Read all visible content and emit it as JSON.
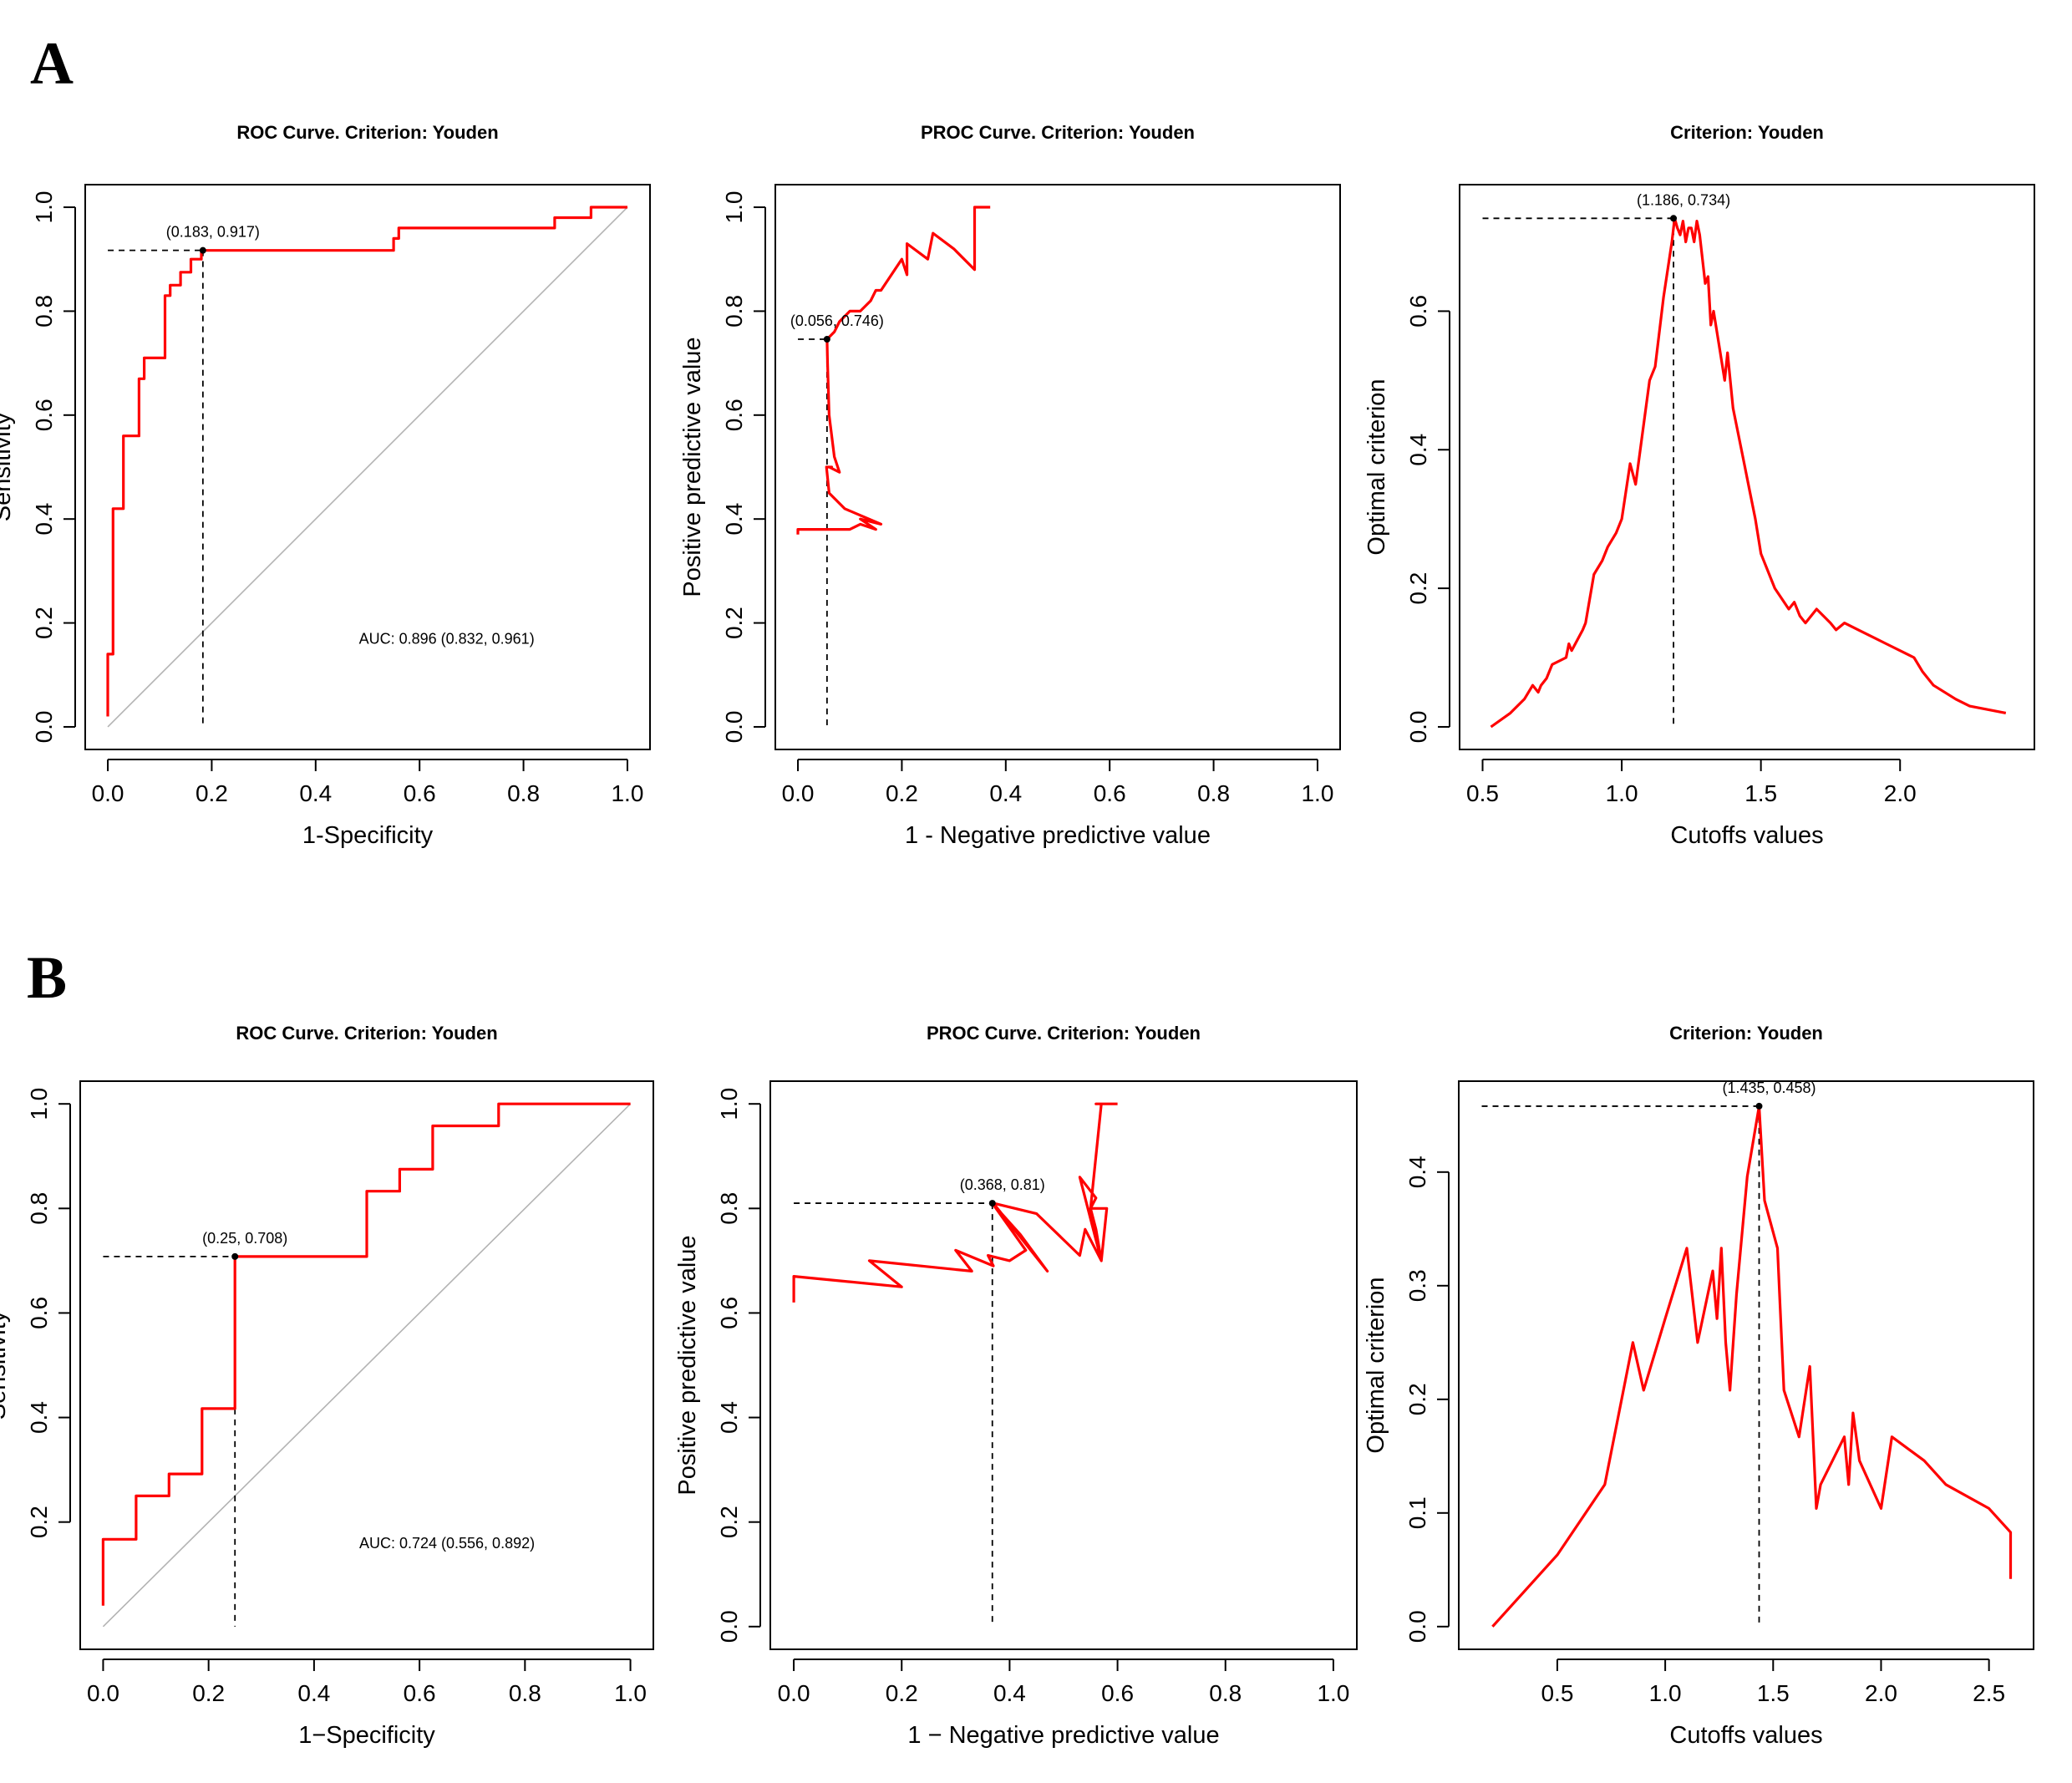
{
  "colors": {
    "curve": "#ff0000",
    "axis": "#000000",
    "diagonal": "#b3b3b3",
    "dash": "#000000"
  },
  "panel_letters": [
    "A",
    "B"
  ],
  "chart_data": [
    {
      "panel": "A",
      "type": "line",
      "title": "ROC Curve. Criterion: Youden",
      "xlabel": "1-Specificity",
      "ylabel": "Sensitivity",
      "xlim": [
        0,
        1
      ],
      "ylim": [
        0,
        1
      ],
      "xticks": [
        "0.0",
        "0.2",
        "0.4",
        "0.6",
        "0.8",
        "1.0"
      ],
      "yticks": [
        "0.0",
        "0.2",
        "0.4",
        "0.6",
        "0.8",
        "1.0"
      ],
      "diagonal": true,
      "series": [
        {
          "name": "ROC",
          "x": [
            0,
            0,
            0.01,
            0.01,
            0.02,
            0.02,
            0.03,
            0.03,
            0.06,
            0.06,
            0.07,
            0.07,
            0.11,
            0.11,
            0.12,
            0.12,
            0.14,
            0.14,
            0.16,
            0.16,
            0.18,
            0.18,
            0.55,
            0.55,
            0.56,
            0.56,
            0.86,
            0.86,
            0.93,
            0.93,
            1.0
          ],
          "y": [
            0.02,
            0.14,
            0.14,
            0.42,
            0.42,
            0.42,
            0.42,
            0.56,
            0.56,
            0.67,
            0.67,
            0.71,
            0.71,
            0.83,
            0.83,
            0.85,
            0.85,
            0.875,
            0.875,
            0.9,
            0.9,
            0.917,
            0.917,
            0.94,
            0.94,
            0.96,
            0.96,
            0.98,
            0.98,
            1.0,
            1.0
          ]
        }
      ],
      "cutpoint": {
        "x": 0.183,
        "y": 0.917,
        "label": "(0.183, 0.917)"
      },
      "auc_text": "AUC: 0.896 (0.832, 0.961)"
    },
    {
      "panel": "A",
      "type": "line",
      "title": "PROC Curve. Criterion: Youden",
      "xlabel": "1 - Negative predictive value",
      "ylabel": "Positive predictive value",
      "xlim": [
        0,
        1
      ],
      "ylim": [
        0,
        1
      ],
      "xticks": [
        "0.0",
        "0.2",
        "0.4",
        "0.6",
        "0.8",
        "1.0"
      ],
      "yticks": [
        "0.0",
        "0.2",
        "0.4",
        "0.6",
        "0.8",
        "1.0"
      ],
      "diagonal": false,
      "series": [
        {
          "name": "PROC",
          "x": [
            0.0,
            0.0,
            0.1,
            0.12,
            0.15,
            0.12,
            0.16,
            0.09,
            0.06,
            0.055,
            0.065,
            0.06,
            0.08,
            0.07,
            0.06,
            0.057,
            0.056,
            0.06,
            0.07,
            0.075,
            0.08,
            0.1,
            0.12,
            0.14,
            0.15,
            0.16,
            0.2,
            0.21,
            0.21,
            0.25,
            0.26,
            0.3,
            0.34,
            0.34,
            0.37
          ],
          "y": [
            0.37,
            0.38,
            0.38,
            0.39,
            0.38,
            0.4,
            0.39,
            0.42,
            0.45,
            0.5,
            0.5,
            0.5,
            0.49,
            0.52,
            0.6,
            0.7,
            0.746,
            0.75,
            0.76,
            0.77,
            0.78,
            0.8,
            0.8,
            0.82,
            0.84,
            0.84,
            0.9,
            0.87,
            0.93,
            0.9,
            0.95,
            0.92,
            0.88,
            1.0,
            1.0
          ]
        }
      ],
      "cutpoint": {
        "x": 0.056,
        "y": 0.746,
        "label": "(0.056, 0.746)"
      }
    },
    {
      "panel": "A",
      "type": "line",
      "title": "Criterion: Youden",
      "xlabel": "Cutoffs values",
      "ylabel": "Optimal criterion",
      "xlim": [
        0.5,
        2.4
      ],
      "ylim": [
        0,
        0.75
      ],
      "xtick_values": [
        0.5,
        1.0,
        1.5,
        2.0
      ],
      "xticks": [
        "0.5",
        "1.0",
        "1.5",
        "2.0"
      ],
      "ytick_values": [
        0,
        0.2,
        0.4,
        0.6
      ],
      "yticks": [
        "0.0",
        "0.2",
        "0.4",
        "0.6"
      ],
      "diagonal": false,
      "series": [
        {
          "name": "Youden",
          "x": [
            0.53,
            0.6,
            0.65,
            0.68,
            0.7,
            0.71,
            0.73,
            0.75,
            0.8,
            0.81,
            0.82,
            0.86,
            0.87,
            0.9,
            0.93,
            0.95,
            0.98,
            1.0,
            1.03,
            1.05,
            1.1,
            1.12,
            1.15,
            1.18,
            1.19,
            1.2,
            1.21,
            1.22,
            1.23,
            1.24,
            1.25,
            1.26,
            1.27,
            1.28,
            1.3,
            1.31,
            1.32,
            1.33,
            1.35,
            1.37,
            1.38,
            1.4,
            1.42,
            1.44,
            1.46,
            1.48,
            1.5,
            1.55,
            1.6,
            1.62,
            1.64,
            1.66,
            1.7,
            1.75,
            1.77,
            1.8,
            1.85,
            1.95,
            2.05,
            2.08,
            2.12,
            2.2,
            2.25,
            2.38
          ],
          "y": [
            0.0,
            0.02,
            0.04,
            0.06,
            0.05,
            0.06,
            0.07,
            0.09,
            0.1,
            0.12,
            0.11,
            0.14,
            0.15,
            0.22,
            0.24,
            0.26,
            0.28,
            0.3,
            0.38,
            0.35,
            0.5,
            0.52,
            0.62,
            0.7,
            0.734,
            0.72,
            0.71,
            0.73,
            0.7,
            0.72,
            0.72,
            0.7,
            0.73,
            0.71,
            0.64,
            0.65,
            0.58,
            0.6,
            0.55,
            0.5,
            0.54,
            0.46,
            0.42,
            0.38,
            0.34,
            0.3,
            0.25,
            0.2,
            0.17,
            0.18,
            0.16,
            0.15,
            0.17,
            0.15,
            0.14,
            0.15,
            0.14,
            0.12,
            0.1,
            0.08,
            0.06,
            0.04,
            0.03,
            0.02
          ]
        }
      ],
      "cutpoint": {
        "x": 1.186,
        "y": 0.734,
        "label": "(1.186, 0.734)"
      }
    },
    {
      "panel": "B",
      "type": "line",
      "title": "ROC Curve. Criterion: Youden",
      "xlabel": "1−Specificity",
      "ylabel": "Sensitivity",
      "xlim": [
        0,
        1
      ],
      "ylim": [
        0,
        1
      ],
      "xticks": [
        "0.0",
        "0.2",
        "0.4",
        "0.6",
        "0.8",
        "1.0"
      ],
      "ytick_values": [
        0.2,
        0.4,
        0.6,
        0.8,
        1.0
      ],
      "yticks": [
        "0.2",
        "0.4",
        "0.6",
        "0.8",
        "1.0"
      ],
      "diagonal": true,
      "series": [
        {
          "name": "ROC",
          "x": [
            0,
            0,
            0.0625,
            0.0625,
            0.125,
            0.125,
            0.1875,
            0.1875,
            0.25,
            0.25,
            0.5,
            0.5,
            0.5625,
            0.5625,
            0.625,
            0.625,
            0.75,
            0.75,
            1.0
          ],
          "y": [
            0.04,
            0.167,
            0.167,
            0.25,
            0.25,
            0.292,
            0.292,
            0.417,
            0.417,
            0.708,
            0.708,
            0.833,
            0.833,
            0.875,
            0.875,
            0.958,
            0.958,
            1.0,
            1.0
          ]
        }
      ],
      "cutpoint": {
        "x": 0.25,
        "y": 0.708,
        "label": "(0.25, 0.708)"
      },
      "auc_text": "AUC: 0.724 (0.556, 0.892)"
    },
    {
      "panel": "B",
      "type": "line",
      "title": "PROC Curve. Criterion: Youden",
      "xlabel": "1 − Negative predictive value",
      "ylabel": "Positive predictive value",
      "xlim": [
        0,
        1
      ],
      "ylim": [
        0,
        1
      ],
      "xticks": [
        "0.0",
        "0.2",
        "0.4",
        "0.6",
        "0.8",
        "1.0"
      ],
      "yticks": [
        "0.0",
        "0.2",
        "0.4",
        "0.6",
        "0.8",
        "1.0"
      ],
      "diagonal": false,
      "series": [
        {
          "name": "PROC",
          "x": [
            0.0,
            0.0,
            0.2,
            0.14,
            0.33,
            0.3,
            0.37,
            0.36,
            0.4,
            0.43,
            0.368,
            0.42,
            0.47,
            0.37,
            0.45,
            0.53,
            0.54,
            0.57,
            0.53,
            0.56,
            0.55,
            0.58,
            0.57,
            0.56,
            0.55,
            0.57,
            0.56,
            0.6
          ],
          "y": [
            0.62,
            0.67,
            0.65,
            0.7,
            0.68,
            0.72,
            0.69,
            0.71,
            0.7,
            0.72,
            0.81,
            0.75,
            0.68,
            0.81,
            0.79,
            0.71,
            0.76,
            0.7,
            0.86,
            0.82,
            0.8,
            0.8,
            0.7,
            0.76,
            0.8,
            1.0,
            1.0,
            1.0
          ]
        }
      ],
      "cutpoint": {
        "x": 0.368,
        "y": 0.81,
        "label": "(0.368, 0.81)"
      }
    },
    {
      "panel": "B",
      "type": "line",
      "title": "Criterion: Youden",
      "xlabel": "Cutoffs values",
      "ylabel": "Optimal criterion",
      "xlim": [
        0.15,
        2.6
      ],
      "ylim": [
        0,
        0.46
      ],
      "xtick_values": [
        0.5,
        1.0,
        1.5,
        2.0,
        2.5
      ],
      "xticks": [
        "0.5",
        "1.0",
        "1.5",
        "2.0",
        "2.5"
      ],
      "ytick_values": [
        0,
        0.1,
        0.2,
        0.3,
        0.4
      ],
      "yticks": [
        "0.0",
        "0.1",
        "0.2",
        "0.3",
        "0.4"
      ],
      "diagonal": false,
      "series": [
        {
          "name": "Youden",
          "x": [
            0.2,
            0.5,
            0.72,
            0.85,
            0.9,
            1.0,
            1.1,
            1.15,
            1.22,
            1.24,
            1.26,
            1.28,
            1.3,
            1.33,
            1.38,
            1.435,
            1.46,
            1.52,
            1.53,
            1.55,
            1.62,
            1.67,
            1.7,
            1.72,
            1.83,
            1.85,
            1.87,
            1.9,
            2.0,
            2.05,
            2.2,
            2.3,
            2.5,
            2.6,
            2.6
          ],
          "y": [
            0.0,
            0.063,
            0.125,
            0.25,
            0.208,
            0.271,
            0.333,
            0.25,
            0.313,
            0.271,
            0.333,
            0.25,
            0.208,
            0.292,
            0.396,
            0.458,
            0.375,
            0.333,
            0.292,
            0.208,
            0.167,
            0.229,
            0.104,
            0.125,
            0.167,
            0.125,
            0.188,
            0.146,
            0.104,
            0.167,
            0.146,
            0.125,
            0.104,
            0.083,
            0.042
          ]
        }
      ],
      "cutpoint": {
        "x": 1.435,
        "y": 0.458,
        "label": "(1.435, 0.458)"
      }
    }
  ]
}
